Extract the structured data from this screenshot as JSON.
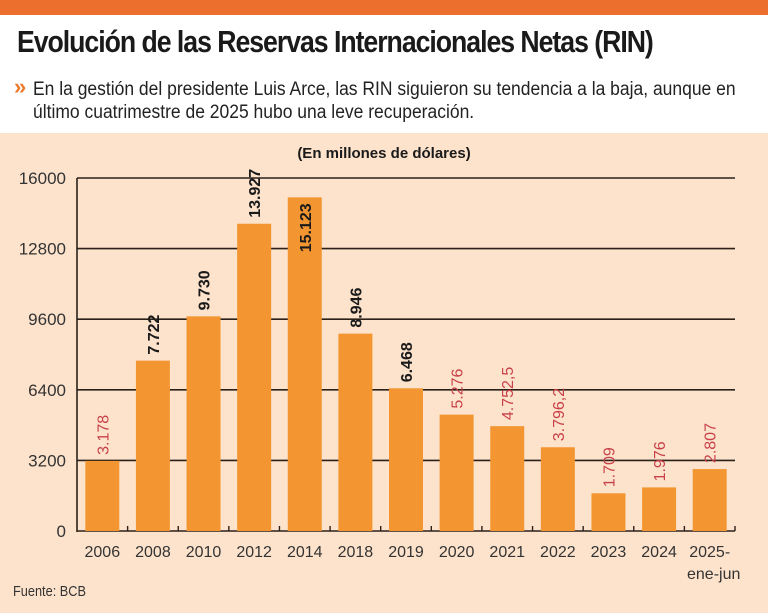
{
  "header": {
    "title": "Evolución de las Reservas Internacionales Netas (RIN)",
    "bullet_icon": "double-chevron-right",
    "subtitle": "En la gestión del presidente Luis Arce, las RIN siguieron su tendencia a la baja, aunque en último cuatrimestre de 2025 hubo una leve recuperación."
  },
  "colors": {
    "top_bar": "#ec6f2d",
    "background": "#fde3cc",
    "bar": "#f39632",
    "label_dark": "#1a1a1a",
    "label_red": "#c8414a"
  },
  "chart_data": {
    "type": "bar",
    "title": "Evolución de las Reservas Internacionales Netas (RIN)",
    "subtitle": "(En millones de dólares)",
    "xlabel": "",
    "ylabel": "",
    "ylim": [
      0,
      16000
    ],
    "yticks": [
      0,
      3200,
      6400,
      9600,
      12800,
      16000
    ],
    "grid": true,
    "categories": [
      "2006",
      "2008",
      "2010",
      "2012",
      "2014",
      "2018",
      "2019",
      "2020",
      "2021",
      "2022",
      "2023",
      "2024",
      "2025-ene-jun"
    ],
    "category_lines": [
      [
        "2006"
      ],
      [
        "2008"
      ],
      [
        "2010"
      ],
      [
        "2012"
      ],
      [
        "2014"
      ],
      [
        "2018"
      ],
      [
        "2019"
      ],
      [
        "2020"
      ],
      [
        "2021"
      ],
      [
        "2022"
      ],
      [
        "2023"
      ],
      [
        "2024"
      ],
      [
        "2025-",
        "ene-jun"
      ]
    ],
    "values": [
      3178,
      7722,
      9730,
      13927,
      15123,
      8946,
      6468,
      5276,
      4752.5,
      3796.2,
      1709,
      1976,
      2807
    ],
    "data_labels": [
      "3.178",
      "7.722",
      "9.730",
      "13.927",
      "15.123",
      "8.946",
      "6.468",
      "5.276",
      "4.752,5",
      "3.796,2",
      "1.709",
      "1.976",
      "2.807"
    ],
    "label_color_group": [
      "red",
      "dark",
      "dark",
      "dark",
      "dark",
      "dark",
      "dark",
      "red",
      "red",
      "red",
      "red",
      "red",
      "red"
    ],
    "label_inside_bar": [
      false,
      false,
      false,
      false,
      true,
      false,
      false,
      false,
      false,
      false,
      false,
      false,
      false
    ],
    "source": "Fuente: BCB"
  }
}
